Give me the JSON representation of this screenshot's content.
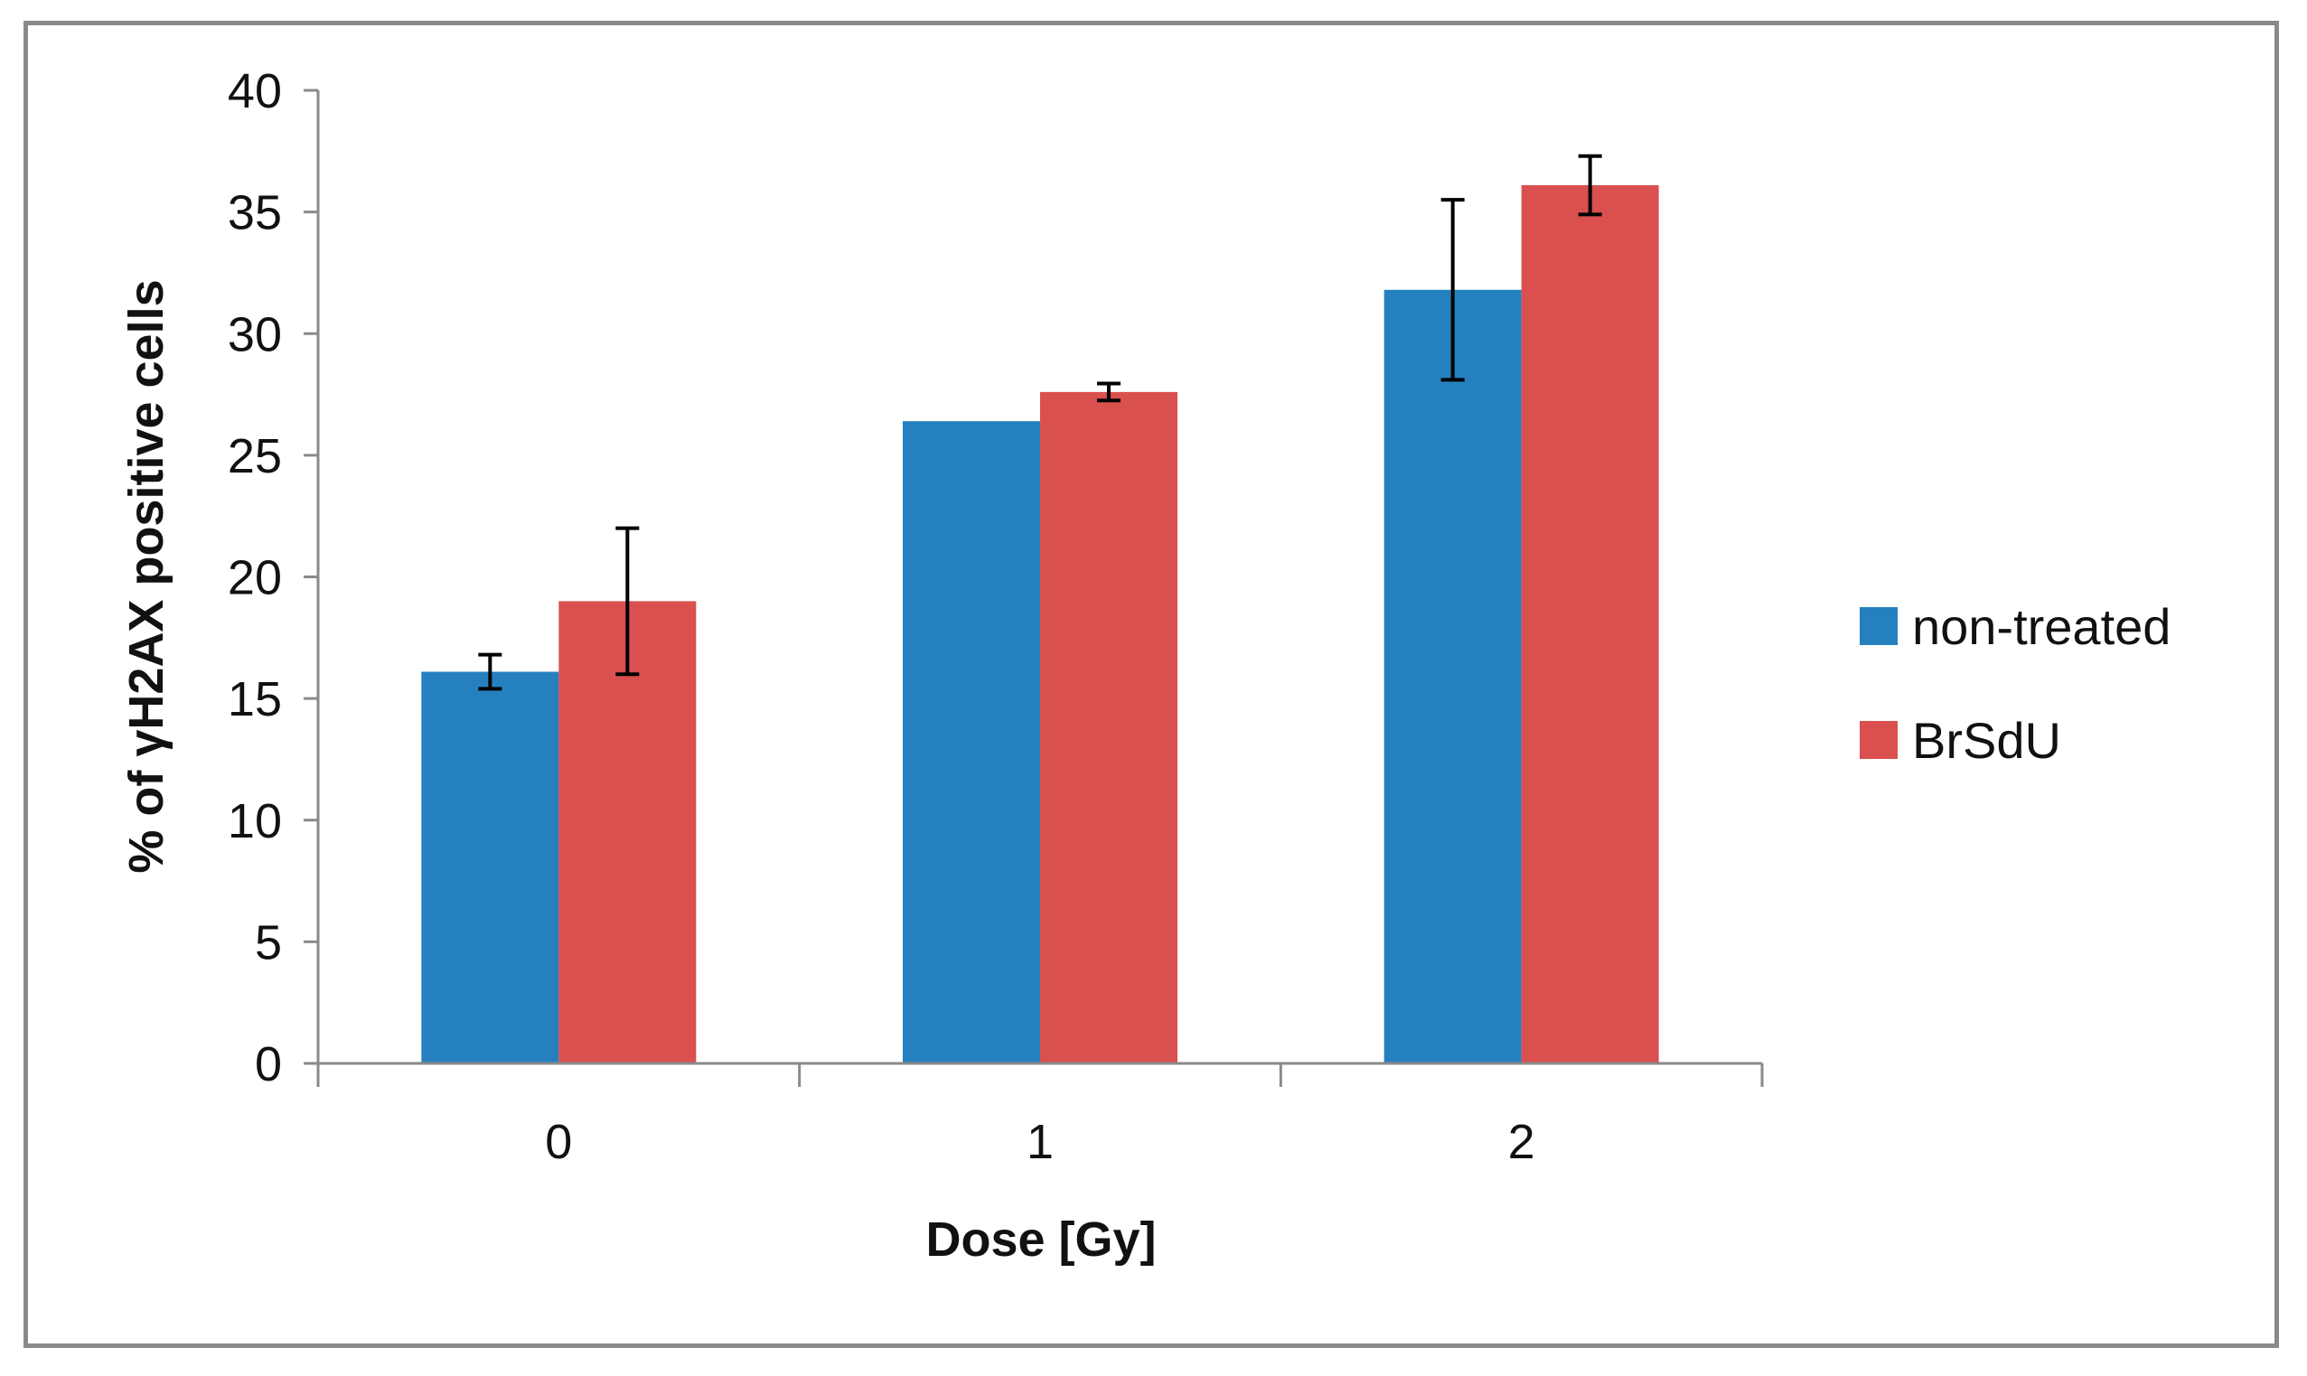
{
  "chart_data": {
    "type": "bar",
    "title": "",
    "xlabel": "Dose [Gy]",
    "ylabel": "% of γH2AX positive cells",
    "categories": [
      "0",
      "1",
      "2"
    ],
    "ylim": [
      0,
      40
    ],
    "yticks": [
      0,
      5,
      10,
      15,
      20,
      25,
      30,
      35,
      40
    ],
    "grid": false,
    "legend_position": "right",
    "series": [
      {
        "name": "non-treated",
        "color": "#2580bf",
        "values": [
          16.1,
          26.4,
          31.8
        ],
        "errors": [
          0.7,
          null,
          3.7
        ]
      },
      {
        "name": "BrSdU",
        "color": "#d9504e",
        "values": [
          19.0,
          27.6,
          36.1
        ],
        "errors": [
          3.0,
          0.35,
          1.2
        ]
      }
    ]
  }
}
